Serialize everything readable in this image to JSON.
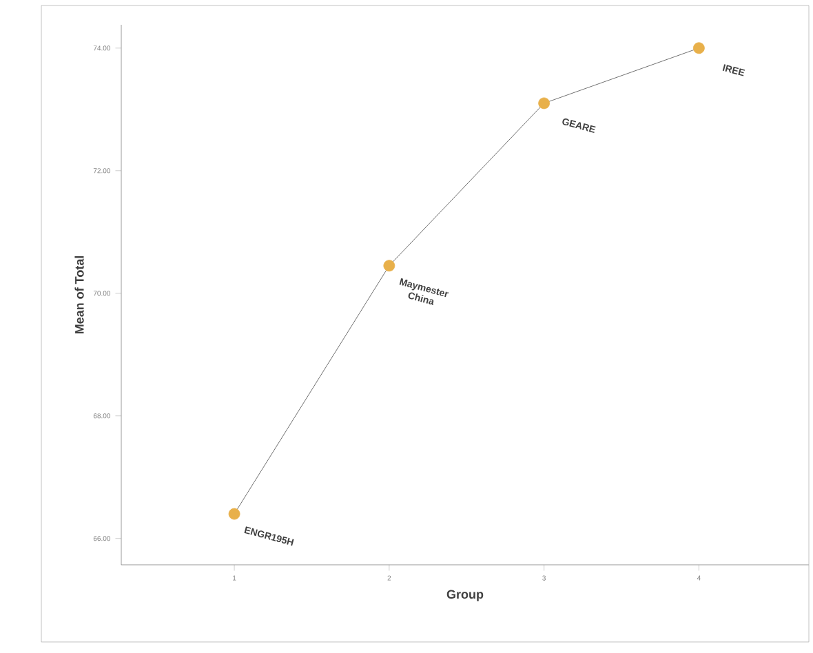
{
  "chart_data": {
    "type": "line",
    "xlabel": "Group",
    "ylabel": "Mean of Total",
    "x": [
      1,
      2,
      3,
      4
    ],
    "series": [
      {
        "color": "#e8b04a",
        "values": [
          66.4,
          70.45,
          73.1,
          74.0
        ]
      }
    ],
    "marker": "circle",
    "xlim": [
      0.27,
      4.71
    ],
    "ylim": [
      65.57,
      74.38
    ],
    "xticks": [
      1,
      2,
      3,
      4
    ],
    "yticks": [
      {
        "value": 66,
        "label": "66.00"
      },
      {
        "value": 68,
        "label": "68.00"
      },
      {
        "value": 70,
        "label": "70.00"
      },
      {
        "value": 72,
        "label": "72.00"
      },
      {
        "value": 74,
        "label": "74.00"
      }
    ],
    "annotations": [
      {
        "text": "ENGR195H",
        "x": 1,
        "y": 66.4
      },
      {
        "text": "Maymester China",
        "x": 2,
        "y": 70.45
      },
      {
        "text": "GEARE",
        "x": 3,
        "y": 73.1
      },
      {
        "text": "IREE",
        "x": 4,
        "y": 74.0
      }
    ]
  }
}
